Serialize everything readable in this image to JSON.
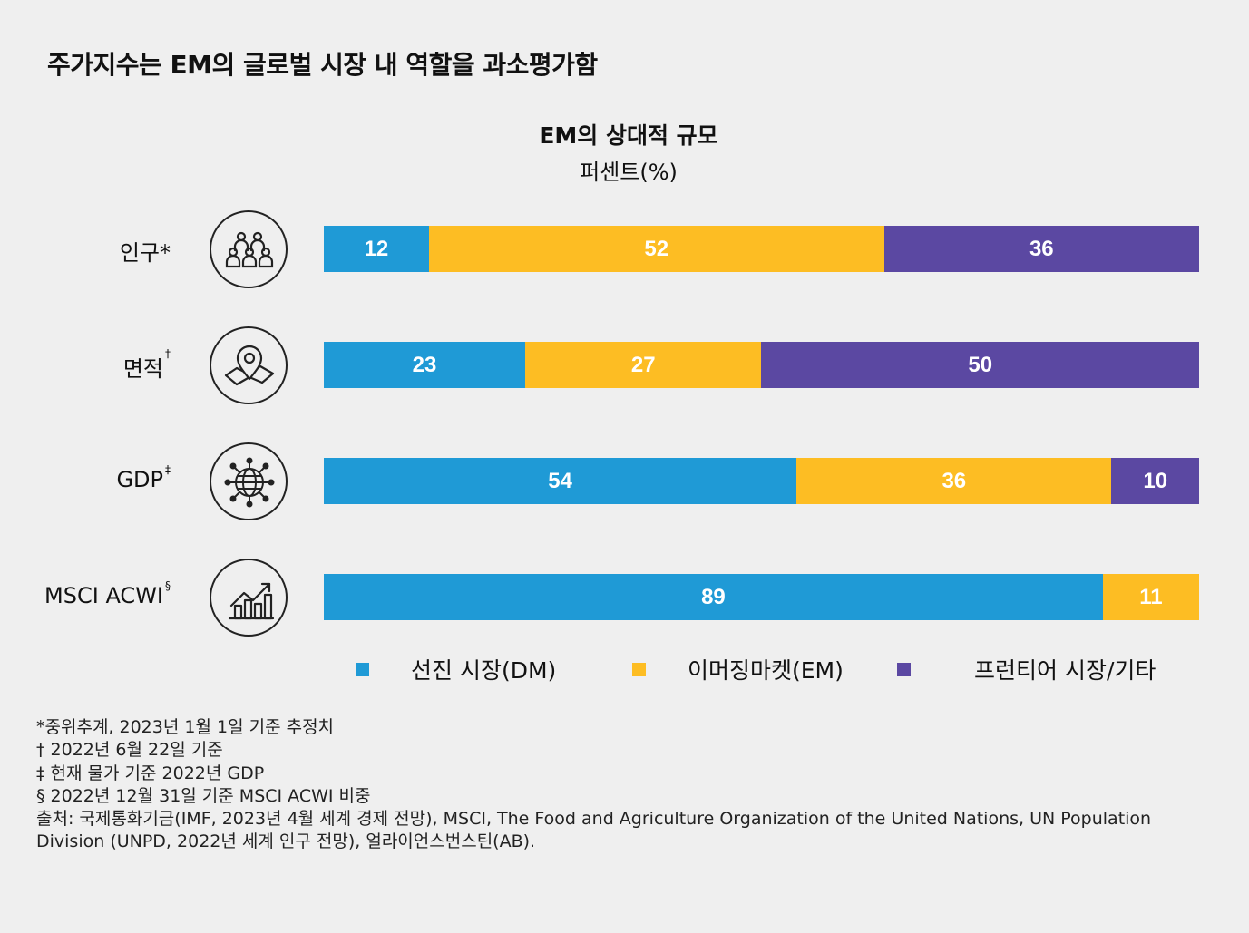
{
  "title": "주가지수는 EM의 글로벌 시장 내 역할을 과소평가함",
  "chart_data": {
    "type": "bar",
    "orientation": "horizontal",
    "stacked": true,
    "title": "EM의 상대적 규모",
    "subtitle": "퍼센트(%)",
    "xlim": [
      0,
      100
    ],
    "categories": [
      "인구*",
      "면적†",
      "GDP‡",
      "MSCI ACWI§"
    ],
    "category_parts": [
      {
        "text": "인구*",
        "mark": ""
      },
      {
        "text": "면적",
        "mark": "†"
      },
      {
        "text": "GDP",
        "mark": "‡"
      },
      {
        "text": "MSCI ACWI",
        "mark": "§"
      }
    ],
    "icons": [
      "people-group-icon",
      "map-pin-icon",
      "globe-network-icon",
      "rising-bar-chart-icon"
    ],
    "series": [
      {
        "name": "선진 시장(DM)",
        "color": "#1f9ad6",
        "values": [
          12,
          23,
          54,
          89
        ]
      },
      {
        "name": "이머징마켓(EM)",
        "color": "#fdbd23",
        "values": [
          52,
          27,
          36,
          11
        ]
      },
      {
        "name": "프런티어 시장/기타",
        "color": "#5b48a2",
        "values": [
          36,
          50,
          10,
          0
        ]
      }
    ],
    "legend_position": "bottom",
    "grid": false
  },
  "notes": [
    "*중위추계, 2023년 1월 1일 기준 추정치",
    "† 2022년 6월 22일 기준",
    "‡ 현재 물가 기준 2022년 GDP",
    "§ 2022년 12월 31일 기준 MSCI ACWI 비중",
    "출처: 국제통화기금(IMF, 2023년 4월 세계 경제 전망), MSCI, The Food and Agriculture Organization of the United Nations, UN Population Division (UNPD, 2022년 세계 인구 전망), 얼라이언스번스틴(AB)."
  ]
}
